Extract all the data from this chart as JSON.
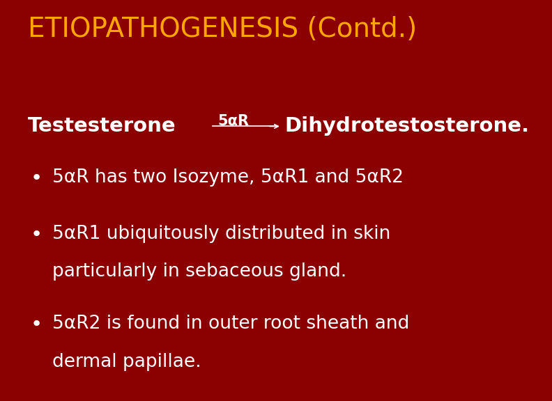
{
  "background_color": "#8B0000",
  "title": "ETIOPATHOGENESIS (Contd.)",
  "title_color": "#FFA500",
  "title_fontsize": 28,
  "content_color": "#FFFFFF",
  "content_fontsize": 19,
  "bold_fontsize": 21,
  "testosterone_text": "Testesterone",
  "alpha_r_label": "5αR",
  "dihydro_text": "Dihydrotestosterone.",
  "bullet1": "5αR has two Isozyme, 5αR1 and 5αR2",
  "bullet2a": "5αR1 ubiquitously distributed in skin",
  "bullet2b": "particularly in sebaceous gland.",
  "bullet3a": "5αR2 is found in outer root sheath and",
  "bullet3b": "dermal papillae."
}
